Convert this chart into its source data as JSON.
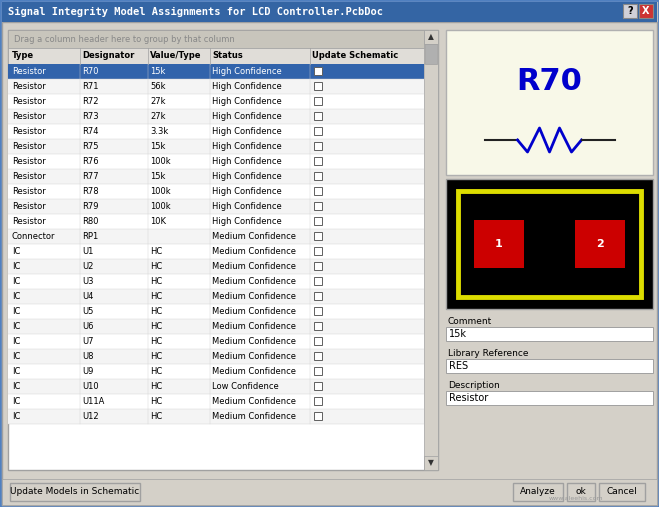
{
  "title": "Signal Integrity Model Assignments for LCD Controller.PcbDoc",
  "bg_color": "#d4d0c8",
  "title_bar_color": "#3465a4",
  "title_bar_text_color": "#ffffff",
  "table_header_bg": "#c8c5bc",
  "table_selected_row_bg": "#3163ab",
  "table_selected_row_fg": "#ffffff",
  "table_row_bg1": "#ffffff",
  "table_row_bg2": "#f0f0f0",
  "table_text_color": "#000000",
  "columns": [
    "Type",
    "Designator",
    "Value/Type",
    "Status",
    "Update Schematic"
  ],
  "rows": [
    [
      "Resistor",
      "R70",
      "15k",
      "High Confidence",
      true
    ],
    [
      "Resistor",
      "R71",
      "56k",
      "High Confidence",
      false
    ],
    [
      "Resistor",
      "R72",
      "27k",
      "High Confidence",
      false
    ],
    [
      "Resistor",
      "R73",
      "27k",
      "High Confidence",
      false
    ],
    [
      "Resistor",
      "R74",
      "3.3k",
      "High Confidence",
      false
    ],
    [
      "Resistor",
      "R75",
      "15k",
      "High Confidence",
      false
    ],
    [
      "Resistor",
      "R76",
      "100k",
      "High Confidence",
      false
    ],
    [
      "Resistor",
      "R77",
      "15k",
      "High Confidence",
      false
    ],
    [
      "Resistor",
      "R78",
      "100k",
      "High Confidence",
      false
    ],
    [
      "Resistor",
      "R79",
      "100k",
      "High Confidence",
      false
    ],
    [
      "Resistor",
      "R80",
      "10K",
      "High Confidence",
      false
    ],
    [
      "Connector",
      "RP1",
      "",
      "Medium Confidence",
      false
    ],
    [
      "IC",
      "U1",
      "HC",
      "Medium Confidence",
      false
    ],
    [
      "IC",
      "U2",
      "HC",
      "Medium Confidence",
      false
    ],
    [
      "IC",
      "U3",
      "HC",
      "Medium Confidence",
      false
    ],
    [
      "IC",
      "U4",
      "HC",
      "Medium Confidence",
      false
    ],
    [
      "IC",
      "U5",
      "HC",
      "Medium Confidence",
      false
    ],
    [
      "IC",
      "U6",
      "HC",
      "Medium Confidence",
      false
    ],
    [
      "IC",
      "U7",
      "HC",
      "Medium Confidence",
      false
    ],
    [
      "IC",
      "U8",
      "HC",
      "Medium Confidence",
      false
    ],
    [
      "IC",
      "U9",
      "HC",
      "Medium Confidence",
      false
    ],
    [
      "IC",
      "U10",
      "HC",
      "Low Confidence",
      false
    ],
    [
      "IC",
      "U11A",
      "HC",
      "Medium Confidence",
      false
    ],
    [
      "IC",
      "U12",
      "HC",
      "Medium Confidence",
      false
    ]
  ],
  "drag_text": "Drag a column header here to group by that column",
  "preview_r70_text": "R70",
  "preview_symbol_color": "#0000cc",
  "preview_bg": "#f8f8e8",
  "preview_pcb_bg": "#000000",
  "preview_pcb_border": "#dddd00",
  "preview_pad_color": "#cc0000",
  "comment_label": "Comment",
  "comment_value": "15k",
  "lib_ref_label": "Library Reference",
  "lib_ref_value": "RES",
  "desc_label": "Description",
  "desc_value": "Resistor",
  "btn_update": "Update Models in Schematic",
  "btn_analyze": "Analyze",
  "btn_ok": "ok",
  "btn_cancel": "Cancel",
  "watermark": "www.aleehis.com"
}
